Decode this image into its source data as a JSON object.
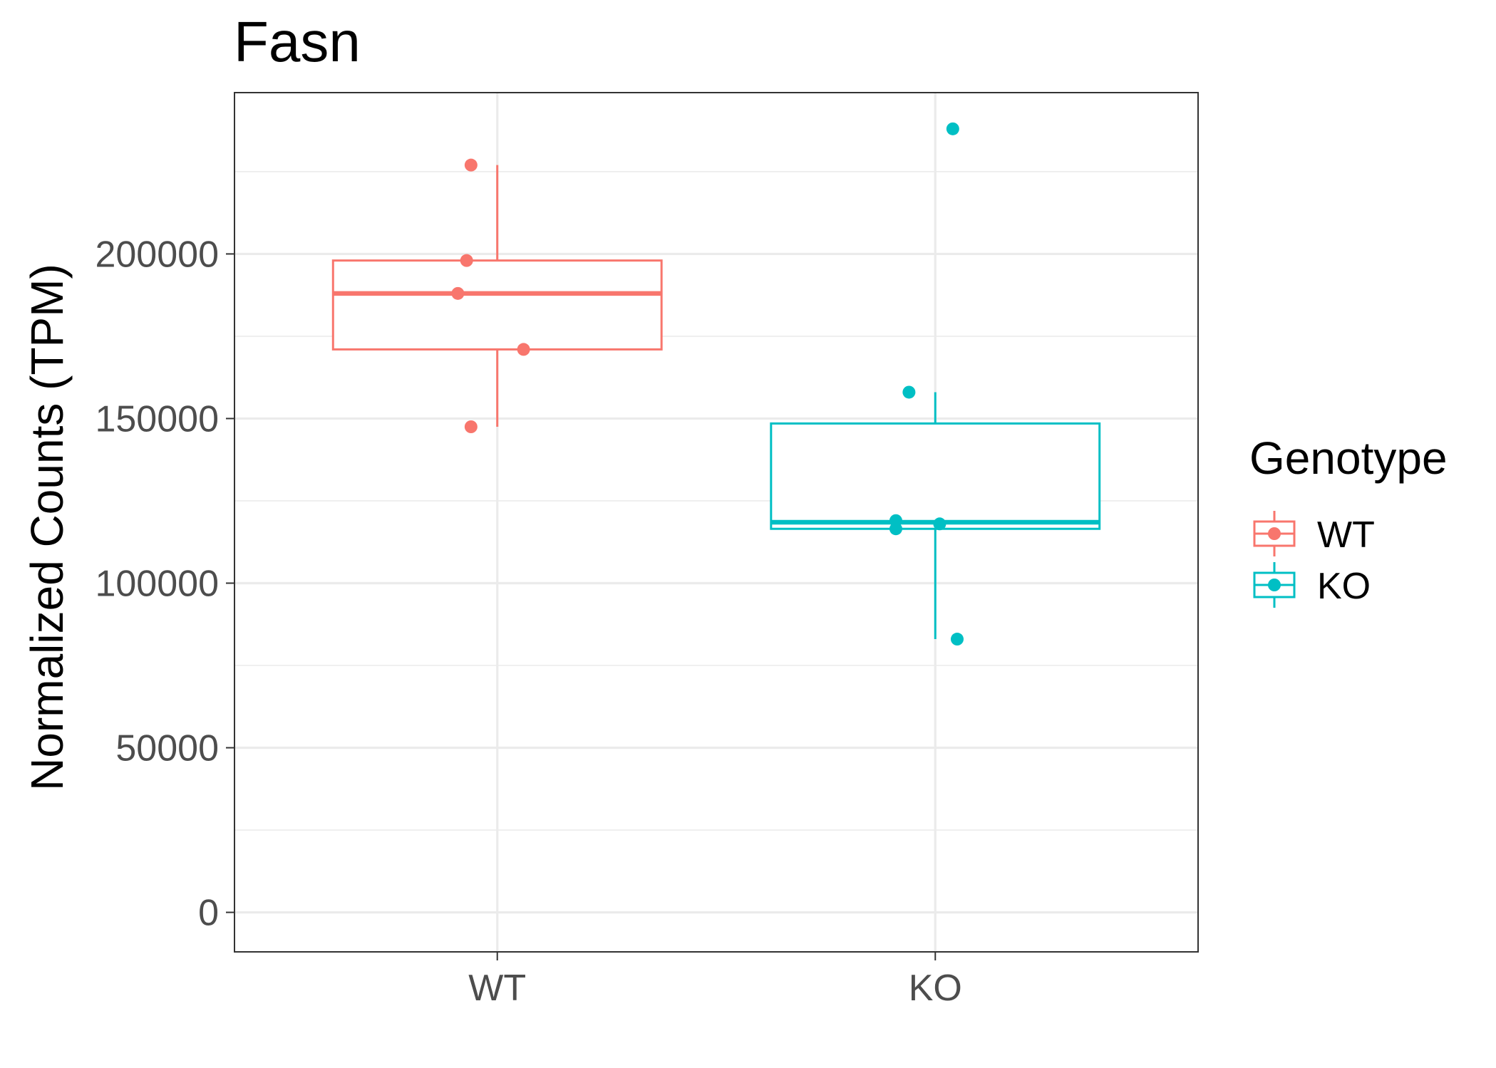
{
  "chart_data": {
    "type": "box",
    "title": "Fasn",
    "xlabel": "",
    "ylabel": "Normalized Counts (TPM)",
    "ylim": [
      -12000,
      249000
    ],
    "yticks": [
      0,
      50000,
      100000,
      150000,
      200000
    ],
    "ytick_labels": [
      "0",
      "50000",
      "100000",
      "150000",
      "200000"
    ],
    "categories": [
      "WT",
      "KO"
    ],
    "grid": true,
    "legend": {
      "title": "Genotype",
      "position": "right",
      "entries": [
        "WT",
        "KO"
      ]
    },
    "series": [
      {
        "name": "WT",
        "color": "#F8766D",
        "box": {
          "whisker_low": 147500,
          "q1": 171000,
          "median": 188000,
          "q3": 198000,
          "whisker_high": 227000
        },
        "points": [
          227000,
          198000,
          188000,
          171000,
          147500
        ],
        "jitter": [
          -0.06,
          -0.07,
          -0.09,
          0.06,
          -0.06
        ]
      },
      {
        "name": "KO",
        "color": "#00BFC4",
        "box": {
          "whisker_low": 83000,
          "q1": 116500,
          "median": 118500,
          "q3": 148500,
          "whisker_high": 158000
        },
        "points": [
          238000,
          158000,
          119000,
          116500,
          118000,
          83000
        ],
        "jitter": [
          0.04,
          -0.06,
          -0.09,
          -0.09,
          0.01,
          0.05
        ]
      }
    ]
  }
}
